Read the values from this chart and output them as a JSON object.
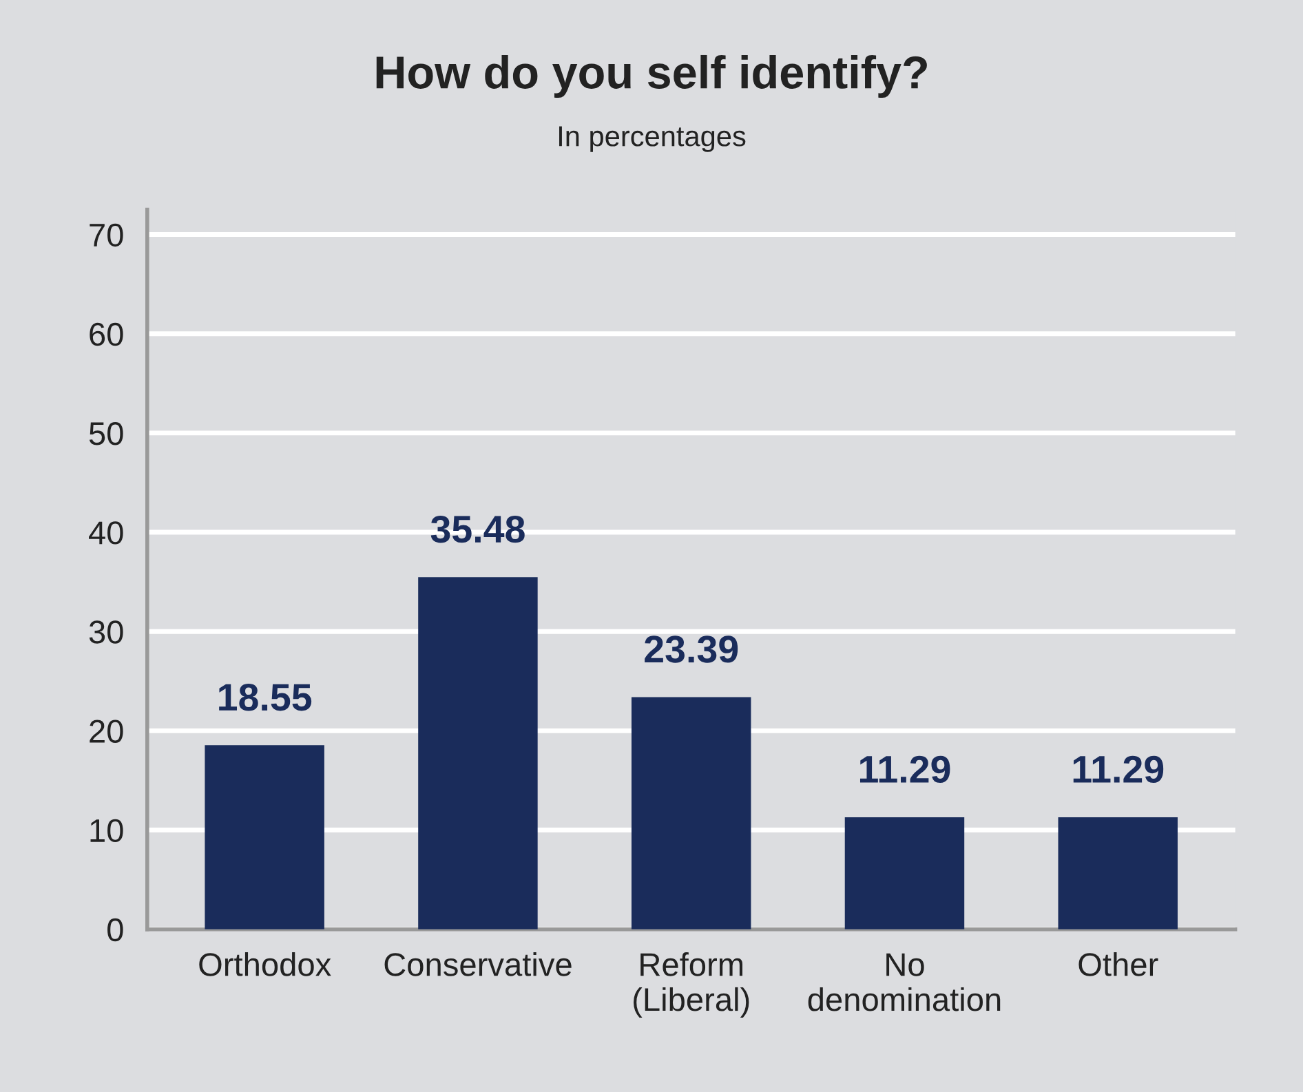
{
  "chart_data": {
    "type": "bar",
    "title": "How do you self identify?",
    "subtitle": "In percentages",
    "categories": [
      "Orthodox",
      "Conservative",
      "Reform\n(Liberal)",
      "No\ndenomination",
      "Other"
    ],
    "values": [
      18.55,
      35.48,
      23.39,
      11.29,
      11.29
    ],
    "color": "#1a2c5b",
    "ylim": [
      0,
      72.5
    ],
    "yticks": [
      0,
      10,
      20,
      30,
      40,
      50,
      60,
      70
    ],
    "grid": "y",
    "data_labels": true,
    "legend": false
  }
}
